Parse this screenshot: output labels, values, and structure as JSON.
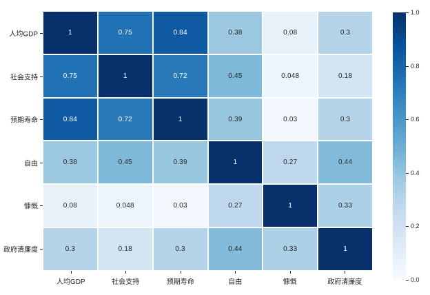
{
  "chart_data": {
    "type": "heatmap",
    "title": "",
    "xlabel": "",
    "ylabel": "",
    "categories": [
      "人均GDP",
      "社会支持",
      "预期寿命",
      "自由",
      "慷慨",
      "政府清廉度"
    ],
    "matrix": [
      [
        1,
        0.75,
        0.84,
        0.38,
        0.08,
        0.3
      ],
      [
        0.75,
        1,
        0.72,
        0.45,
        0.048,
        0.18
      ],
      [
        0.84,
        0.72,
        1,
        0.39,
        0.03,
        0.3
      ],
      [
        0.38,
        0.45,
        0.39,
        1,
        0.27,
        0.44
      ],
      [
        0.08,
        0.048,
        0.03,
        0.27,
        1,
        0.33
      ],
      [
        0.3,
        0.18,
        0.3,
        0.44,
        0.33,
        1
      ]
    ],
    "colormap": {
      "name": "Blues",
      "stops": [
        [
          0.0,
          "#f7fbff"
        ],
        [
          0.125,
          "#deebf7"
        ],
        [
          0.25,
          "#c6dbef"
        ],
        [
          0.375,
          "#9ecae1"
        ],
        [
          0.5,
          "#6baed6"
        ],
        [
          0.625,
          "#4292c6"
        ],
        [
          0.75,
          "#2171b5"
        ],
        [
          0.875,
          "#08519c"
        ],
        [
          1.0,
          "#08306b"
        ]
      ]
    },
    "colorbar": {
      "min": 0.0,
      "max": 1.0,
      "position": "right",
      "tick_labels": [
        "1.0",
        "0.8",
        "0.6",
        "0.4",
        "0.2",
        "0.0"
      ]
    },
    "style": {
      "cell_text_dark": "#262626",
      "cell_text_light": "#ffffff",
      "light_text_threshold": 0.6,
      "cell_gap_color": "#ffffff",
      "tick_color": "#262626"
    }
  }
}
